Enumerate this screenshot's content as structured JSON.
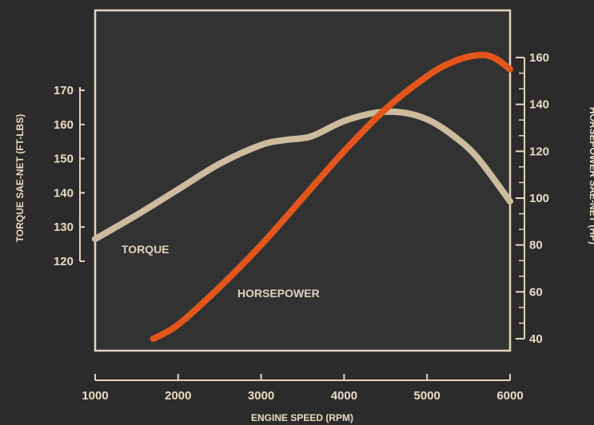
{
  "chart_data": {
    "type": "line",
    "xlabel": "ENGINE SPEED (RPM)",
    "ylabel_left": "TORQUE SAE-NET (FT-LBS)",
    "ylabel_right": "HORSEPOWER SAE-NET (HP)",
    "xlim": [
      1000,
      6000
    ],
    "ylim_left": [
      120,
      170
    ],
    "ylim_right": [
      40,
      160
    ],
    "x_ticks": [
      1000,
      2000,
      3000,
      4000,
      5000,
      6000
    ],
    "y_ticks_left": [
      120,
      130,
      140,
      150,
      160,
      170
    ],
    "y_ticks_right": [
      40,
      60,
      80,
      100,
      120,
      140,
      160
    ],
    "series": [
      {
        "name": "TORQUE",
        "axis": "left",
        "color": "#cdbb9e",
        "x": [
          1000,
          1500,
          2000,
          2500,
          3000,
          3300,
          3600,
          4000,
          4400,
          4700,
          5000,
          5300,
          5600,
          6000
        ],
        "y": [
          126.5,
          133.5,
          141,
          148.5,
          154,
          155.5,
          156.5,
          161,
          163.5,
          163.5,
          161.5,
          157,
          150.5,
          137.5
        ]
      },
      {
        "name": "HORSEPOWER",
        "axis": "right",
        "color": "#e2561c",
        "x": [
          1700,
          2000,
          2500,
          3000,
          3500,
          4000,
          4500,
          5000,
          5300,
          5600,
          5800,
          6000
        ],
        "y": [
          40,
          46,
          62,
          80,
          100,
          120,
          138,
          152,
          158,
          161,
          160,
          155
        ]
      }
    ],
    "grid": false,
    "legend": "inline labels"
  }
}
